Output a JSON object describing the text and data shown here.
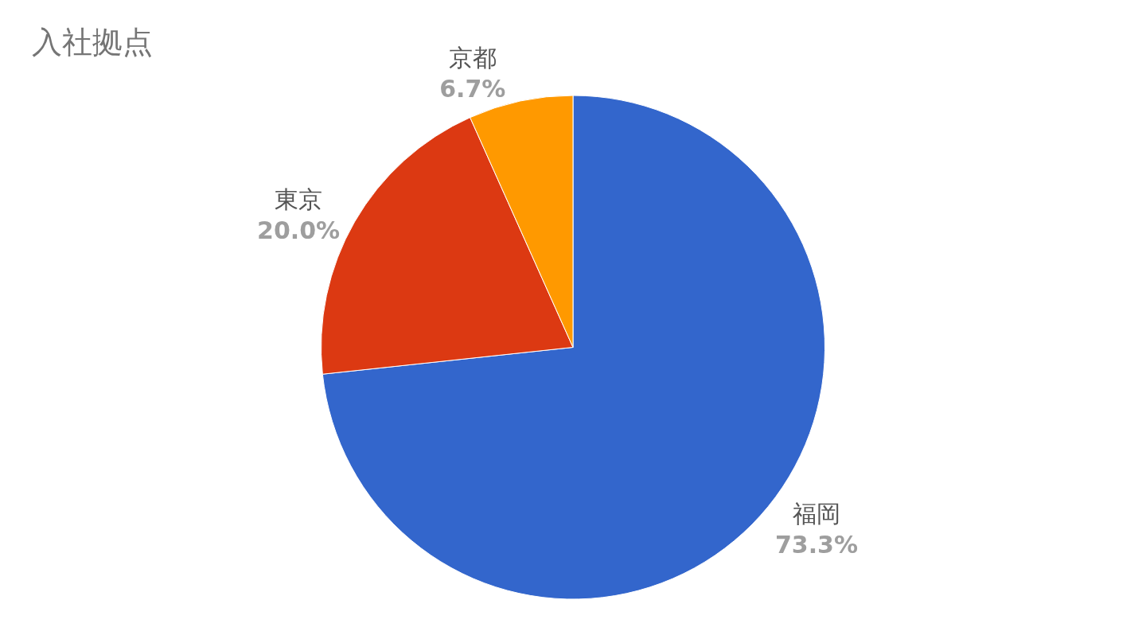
{
  "chart_data": {
    "type": "pie",
    "title": "入社拠点",
    "categories": [
      "福岡",
      "東京",
      "京都"
    ],
    "values": [
      73.3,
      20.0,
      6.7
    ],
    "colors": [
      "#3366cc",
      "#dc3912",
      "#ff9900"
    ],
    "value_labels": [
      "73.3%",
      "20.0%",
      "6.7%"
    ],
    "legend": false
  }
}
